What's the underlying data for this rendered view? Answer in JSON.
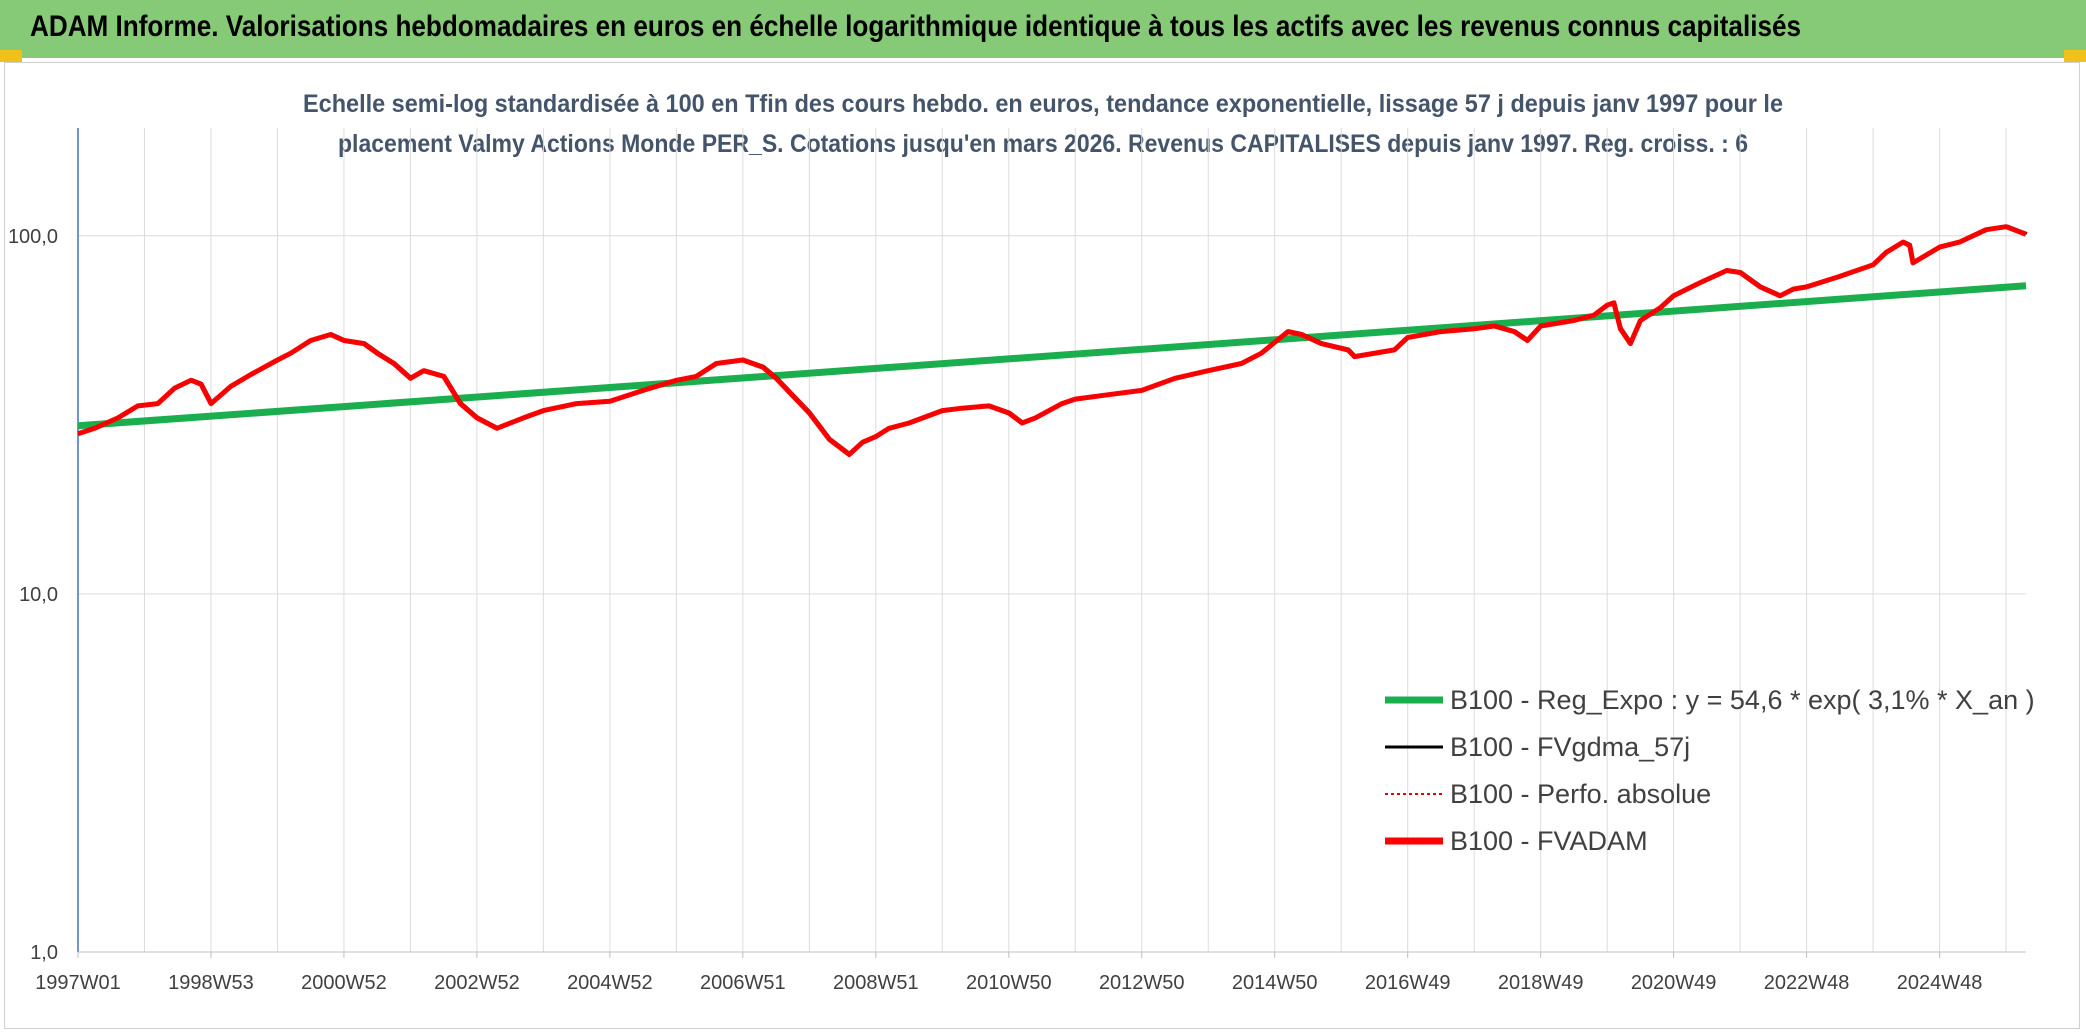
{
  "header": {
    "title": "ADAM Informe. Valorisations hebdomadaires en euros en échelle logarithmique identique à tous les actifs avec les revenus connus capitalisés"
  },
  "colors": {
    "header_bg": "#86c977",
    "corner_accent": "#f1c01b",
    "trend": "#1aae4f",
    "smoothed": "#000000",
    "absolute": "#e00000",
    "fvadam": "#ff0000",
    "subtitle": "#44546a"
  },
  "chart_data": {
    "type": "line",
    "title_line1": "Echelle semi-log standardisée à 100 en Tfin des cours hebdo. en euros, tendance exponentielle, lissage 57 j depuis janv 1997 pour le",
    "title_line2": "placement Valmy Actions Monde PER_S. Cotations jusqu'en mars 2026. Revenus CAPITALISES depuis janv 1997. Reg. croiss. : 6",
    "y_scale": "log",
    "ylim": [
      1,
      200
    ],
    "y_ticks": [
      {
        "value": 1,
        "label": "1,0"
      },
      {
        "value": 10,
        "label": "10,0"
      },
      {
        "value": 100,
        "label": "100,0"
      }
    ],
    "xlim": [
      1997.0,
      2026.3
    ],
    "x_ticks": [
      {
        "value": 1997.0,
        "label": "1997W01"
      },
      {
        "value": 1999.0,
        "label": "1998W53"
      },
      {
        "value": 2001.0,
        "label": "2000W52"
      },
      {
        "value": 2003.0,
        "label": "2002W52"
      },
      {
        "value": 2005.0,
        "label": "2004W52"
      },
      {
        "value": 2007.0,
        "label": "2006W51"
      },
      {
        "value": 2009.0,
        "label": "2008W51"
      },
      {
        "value": 2011.0,
        "label": "2010W50"
      },
      {
        "value": 2013.0,
        "label": "2012W50"
      },
      {
        "value": 2015.0,
        "label": "2014W50"
      },
      {
        "value": 2017.0,
        "label": "2016W49"
      },
      {
        "value": 2019.0,
        "label": "2018W49"
      },
      {
        "value": 2021.0,
        "label": "2020W49"
      },
      {
        "value": 2023.0,
        "label": "2022W48"
      },
      {
        "value": 2025.0,
        "label": "2024W48"
      }
    ],
    "grid": true,
    "legend_position": "bottom-right",
    "series": [
      {
        "name": "B100 - Reg_Expo : y = 54,6 * exp( 3,1% *  X_an )",
        "color": "#1aae4f",
        "style": "solid-thick",
        "x": [
          1997.0,
          2026.3
        ],
        "y": [
          29.5,
          72.5
        ]
      },
      {
        "name": "B100 - FVgdma_57j",
        "color": "#000000",
        "style": "solid"
      },
      {
        "name": "B100 - Perfo. absolue",
        "color": "#e00000",
        "style": "dotted"
      },
      {
        "name": "B100 - FVADAM",
        "color": "#ff0000",
        "style": "solid-thick",
        "x": [
          1997.0,
          1997.25,
          1997.6,
          1997.9,
          1998.2,
          1998.45,
          1998.7,
          1998.85,
          1999.0,
          1999.3,
          1999.6,
          2000.0,
          2000.2,
          2000.5,
          2000.8,
          2001.0,
          2001.3,
          2001.5,
          2001.75,
          2002.0,
          2002.2,
          2002.5,
          2002.75,
          2003.0,
          2003.3,
          2003.7,
          2004.0,
          2004.5,
          2005.0,
          2005.5,
          2006.0,
          2006.3,
          2006.6,
          2007.0,
          2007.3,
          2007.5,
          2007.8,
          2008.0,
          2008.3,
          2008.6,
          2008.8,
          2009.0,
          2009.2,
          2009.5,
          2010.0,
          2010.3,
          2010.7,
          2011.0,
          2011.2,
          2011.4,
          2011.8,
          2012.0,
          2012.5,
          2013.0,
          2013.5,
          2014.0,
          2014.5,
          2014.8,
          2015.2,
          2015.4,
          2015.7,
          2016.1,
          2016.2,
          2016.8,
          2017.0,
          2017.5,
          2018.0,
          2018.3,
          2018.6,
          2018.8,
          2019.0,
          2019.5,
          2019.8,
          2020.0,
          2020.1,
          2020.2,
          2020.35,
          2020.5,
          2020.8,
          2021.0,
          2021.4,
          2021.8,
          2022.0,
          2022.3,
          2022.6,
          2022.8,
          2023.0,
          2023.5,
          2024.0,
          2024.2,
          2024.45,
          2024.55,
          2024.6,
          2025.0,
          2025.3,
          2025.7,
          2026.0,
          2026.3
        ],
        "y": [
          28,
          29,
          31,
          33.5,
          34,
          37.5,
          39.5,
          38.5,
          34,
          38,
          41,
          45,
          47,
          51,
          53,
          51,
          50,
          47,
          44,
          40,
          42,
          40.5,
          34,
          31,
          29,
          31,
          32.5,
          34,
          34.5,
          37,
          39.5,
          40.5,
          44,
          45,
          43,
          40,
          35,
          32,
          27,
          24.5,
          26.5,
          27.5,
          29,
          30,
          32.5,
          33,
          33.5,
          32,
          30,
          31,
          34,
          35,
          36,
          37,
          40,
          42,
          44,
          47,
          54,
          53,
          50,
          48,
          46,
          48,
          52,
          54,
          55,
          56,
          54,
          51,
          56,
          58,
          60,
          64,
          65,
          55,
          50,
          58,
          63,
          68,
          74,
          80,
          79,
          72,
          68,
          71,
          72,
          77,
          83,
          90,
          96,
          94,
          84,
          93,
          96,
          104,
          106,
          101
        ]
      }
    ]
  }
}
